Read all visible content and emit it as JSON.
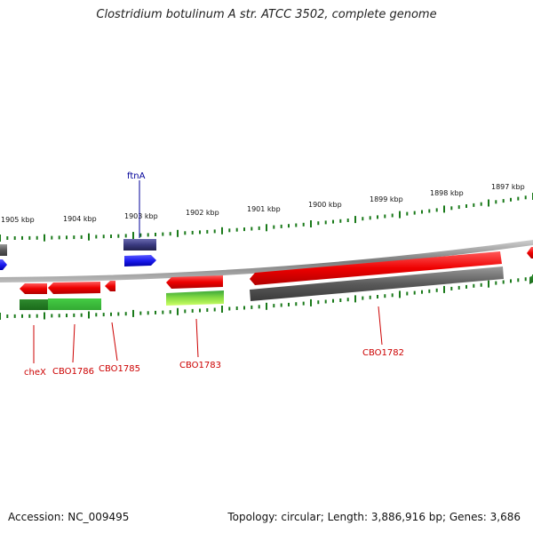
{
  "title": "Clostridium botulinum A str. ATCC 3502, complete genome",
  "footer": {
    "accession": "Accession: NC_009495",
    "topology": "Topology: circular; Length: 3,886,916 bp; Genes: 3,686"
  },
  "colors": {
    "forward_gene": "#ee0000",
    "pseudo_gene": "#666666",
    "rna_gene": "#3a3a80",
    "blue_gene": "#1a1aee",
    "cds_green": "#2a9a2a",
    "tick": "#1a7a1a",
    "label_red": "#cc0000",
    "label_blue": "#000099"
  },
  "scale_labels": [
    "1905 kbp",
    "1904 kbp",
    "1903 kbp",
    "1902 kbp",
    "1901 kbp",
    "1900 kbp",
    "1899 kbp",
    "1898 kbp",
    "1897 kbp"
  ],
  "gene_labels": {
    "ftnA": "ftnA",
    "cheX": "cheX",
    "cbo1786": "CBO1786",
    "cbo1785": "CBO1785",
    "cbo1783": "CBO1783",
    "cbo1782": "CBO1782"
  }
}
